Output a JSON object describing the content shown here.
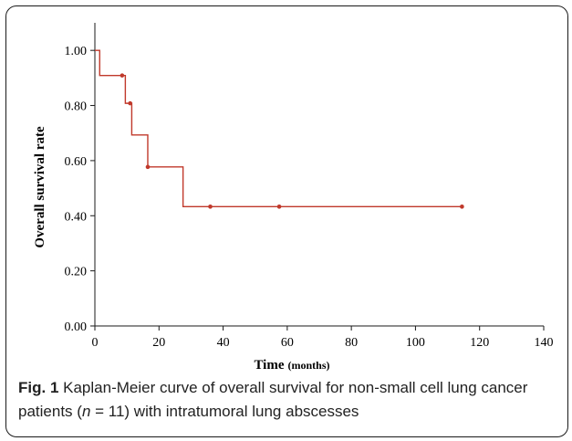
{
  "chart_data": {
    "type": "line",
    "title": "",
    "xlabel": "Time",
    "xlabel_unit": "(months)",
    "ylabel": "Overall survival rate",
    "xlim": [
      0,
      140
    ],
    "ylim": [
      0.0,
      1.1
    ],
    "x_ticks": [
      0,
      20,
      40,
      60,
      80,
      100,
      120,
      140
    ],
    "x_tick_labels": [
      "0",
      "20",
      "40",
      "60",
      "80",
      "100",
      "120",
      "140"
    ],
    "y_ticks": [
      0.0,
      0.2,
      0.4,
      0.6,
      0.8,
      1.0
    ],
    "y_tick_labels": [
      "0.00",
      "0.20",
      "0.40",
      "0.60",
      "0.80",
      "1.00"
    ],
    "grid": false,
    "legend": "none",
    "series": [
      {
        "steps": [
          {
            "x": 0,
            "y": 1.0
          },
          {
            "x": 1.5,
            "y": 0.909
          },
          {
            "x": 9.5,
            "y": 0.808
          },
          {
            "x": 11.5,
            "y": 0.693
          },
          {
            "x": 16.5,
            "y": 0.577
          },
          {
            "x": 27.5,
            "y": 0.433
          },
          {
            "x": 114.5,
            "y": 0.433
          }
        ],
        "censored": [
          {
            "x": 8.5,
            "y": 0.909
          },
          {
            "x": 11,
            "y": 0.808
          },
          {
            "x": 16.5,
            "y": 0.577
          },
          {
            "x": 36,
            "y": 0.433
          },
          {
            "x": 57.5,
            "y": 0.433
          },
          {
            "x": 114.5,
            "y": 0.433
          }
        ]
      }
    ]
  },
  "colors": {
    "curve": "#c0392b",
    "axis": "#1a1a1a"
  },
  "caption": {
    "label": "Fig. 1",
    "text_before": " Kaplan-Meier curve of overall survival for non-small cell lung cancer patients (",
    "n_symbol": "n",
    "text_after": " = 11) with intratumoral lung abscesses"
  }
}
